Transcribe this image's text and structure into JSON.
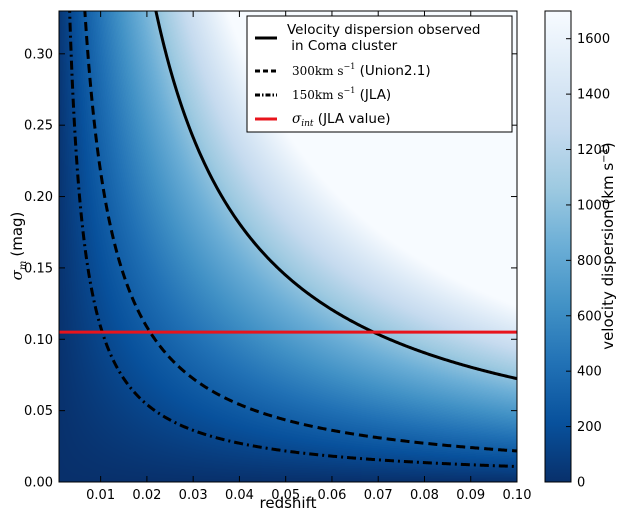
{
  "chart_data": {
    "type": "heatmap",
    "title": "",
    "xlabel": "redshift",
    "ylabel_symbol": "σ",
    "ylabel_subscript": "m",
    "ylabel_unit": "(mag)",
    "xlim": [
      0.001,
      0.1
    ],
    "ylim": [
      0.0,
      0.33
    ],
    "x_ticks": [
      0.01,
      0.02,
      0.03,
      0.04,
      0.05,
      0.06,
      0.07,
      0.08,
      0.09,
      0.1
    ],
    "x_tick_labels": [
      "0.01",
      "0.02",
      "0.03",
      "0.04",
      "0.05",
      "0.06",
      "0.07",
      "0.08",
      "0.09",
      "0.10"
    ],
    "y_ticks": [
      0.0,
      0.05,
      0.1,
      0.15,
      0.2,
      0.25,
      0.3
    ],
    "y_tick_labels": [
      "0.00",
      "0.05",
      "0.10",
      "0.15",
      "0.20",
      "0.25",
      "0.30"
    ],
    "colorbar": {
      "label": "velocity dispersion (km s",
      "label_exponent": "−1",
      "label_close": ")",
      "range": [
        0,
        1700
      ],
      "ticks": [
        0,
        200,
        400,
        600,
        800,
        1000,
        1200,
        1400,
        1600
      ],
      "tick_labels": [
        "0",
        "200",
        "400",
        "600",
        "800",
        "1000",
        "1200",
        "1400",
        "1600"
      ],
      "colormap": "Blues_r",
      "color_low": "#08306b",
      "color_high": "#f7fbff"
    },
    "series": [
      {
        "name": "Velocity dispersion observed in Coma cluster",
        "legend_line1": "Velocity dispersion observed",
        "legend_line2": " in Coma cluster",
        "velocity_kms": 1000,
        "style": "solid",
        "color": "#000000"
      },
      {
        "name": "300km s−1 (Union2.1)",
        "legend_value": "300",
        "legend_unit": "km s",
        "legend_exponent": "−1",
        "legend_suffix": " (Union2.1)",
        "velocity_kms": 300,
        "style": "dashed",
        "color": "#000000"
      },
      {
        "name": "150km s−1 (JLA)",
        "legend_value": "150",
        "legend_unit": "km s",
        "legend_exponent": "−1",
        "legend_suffix": " (JLA)",
        "velocity_kms": 150,
        "style": "dashdot",
        "color": "#000000"
      },
      {
        "name": "σint (JLA value)",
        "legend_symbol": "σ",
        "legend_subscript": "int",
        "legend_suffix": " (JLA value)",
        "y_value": 0.105,
        "style": "solid",
        "color": "#e8141c"
      }
    ],
    "grid": false,
    "legend_position": "top-right"
  }
}
